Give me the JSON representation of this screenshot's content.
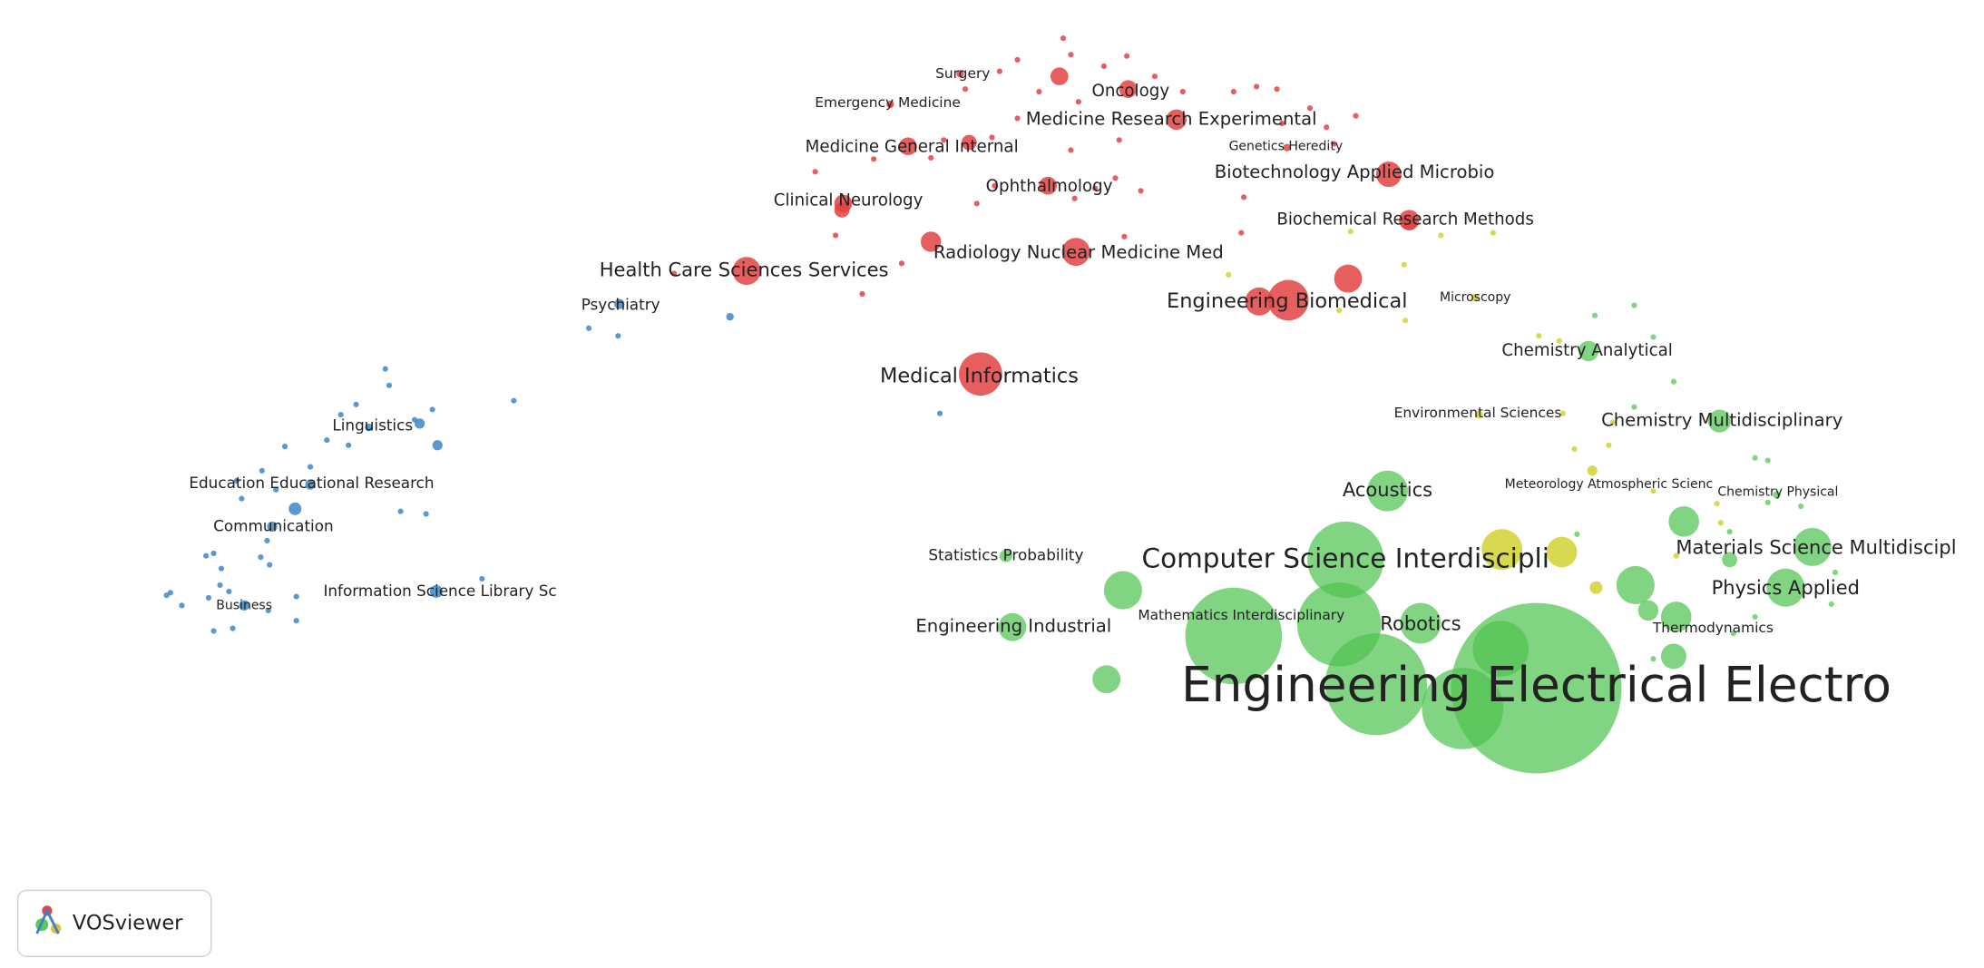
{
  "nodes": [
    {
      "label": "Surgery"
    },
    {
      "label": "Oncology"
    },
    {
      "label": "Emergency Medicine"
    },
    {
      "label": "Medicine Research Experimental"
    },
    {
      "label": "Genetics Heredity"
    },
    {
      "label": "Medicine General Internal"
    },
    {
      "label": "Biotechnology Applied Microbio"
    },
    {
      "label": "Clinical Neurology"
    },
    {
      "label": "Ophthalmology"
    },
    {
      "label": "Biochemical Research Methods"
    },
    {
      "label": "Radiology Nuclear Medicine Med"
    },
    {
      "label": "Health Care Sciences Services"
    },
    {
      "label": "Engineering Biomedical"
    },
    {
      "label": "Medical Informatics"
    },
    {
      "label": "Psychiatry"
    },
    {
      "label": "Linguistics"
    },
    {
      "label": "Education Educational Research"
    },
    {
      "label": "Communication"
    },
    {
      "label": "Information Science Library Sc"
    },
    {
      "label": "Business"
    },
    {
      "label": "Microscopy"
    },
    {
      "label": "Environmental Sciences"
    },
    {
      "label": "Meteorology Atmospheric Scienc"
    },
    {
      "label": "Chemistry Physical"
    },
    {
      "label": "Chemistry Analytical"
    },
    {
      "label": "Chemistry Multidisciplinary"
    },
    {
      "label": "Acoustics"
    },
    {
      "label": "Statistics Probability"
    },
    {
      "label": "Computer Science Interdiscipli"
    },
    {
      "label": "Materials Science Multidiscipl"
    },
    {
      "label": "Physics Applied"
    },
    {
      "label": "Engineering Industrial"
    },
    {
      "label": "Mathematics Interdisciplinary"
    },
    {
      "label": "Robotics"
    },
    {
      "label": "Thermodynamics"
    },
    {
      "label": "Engineering Electrical Electro"
    }
  ],
  "logo": {
    "text": "VOSviewer"
  }
}
